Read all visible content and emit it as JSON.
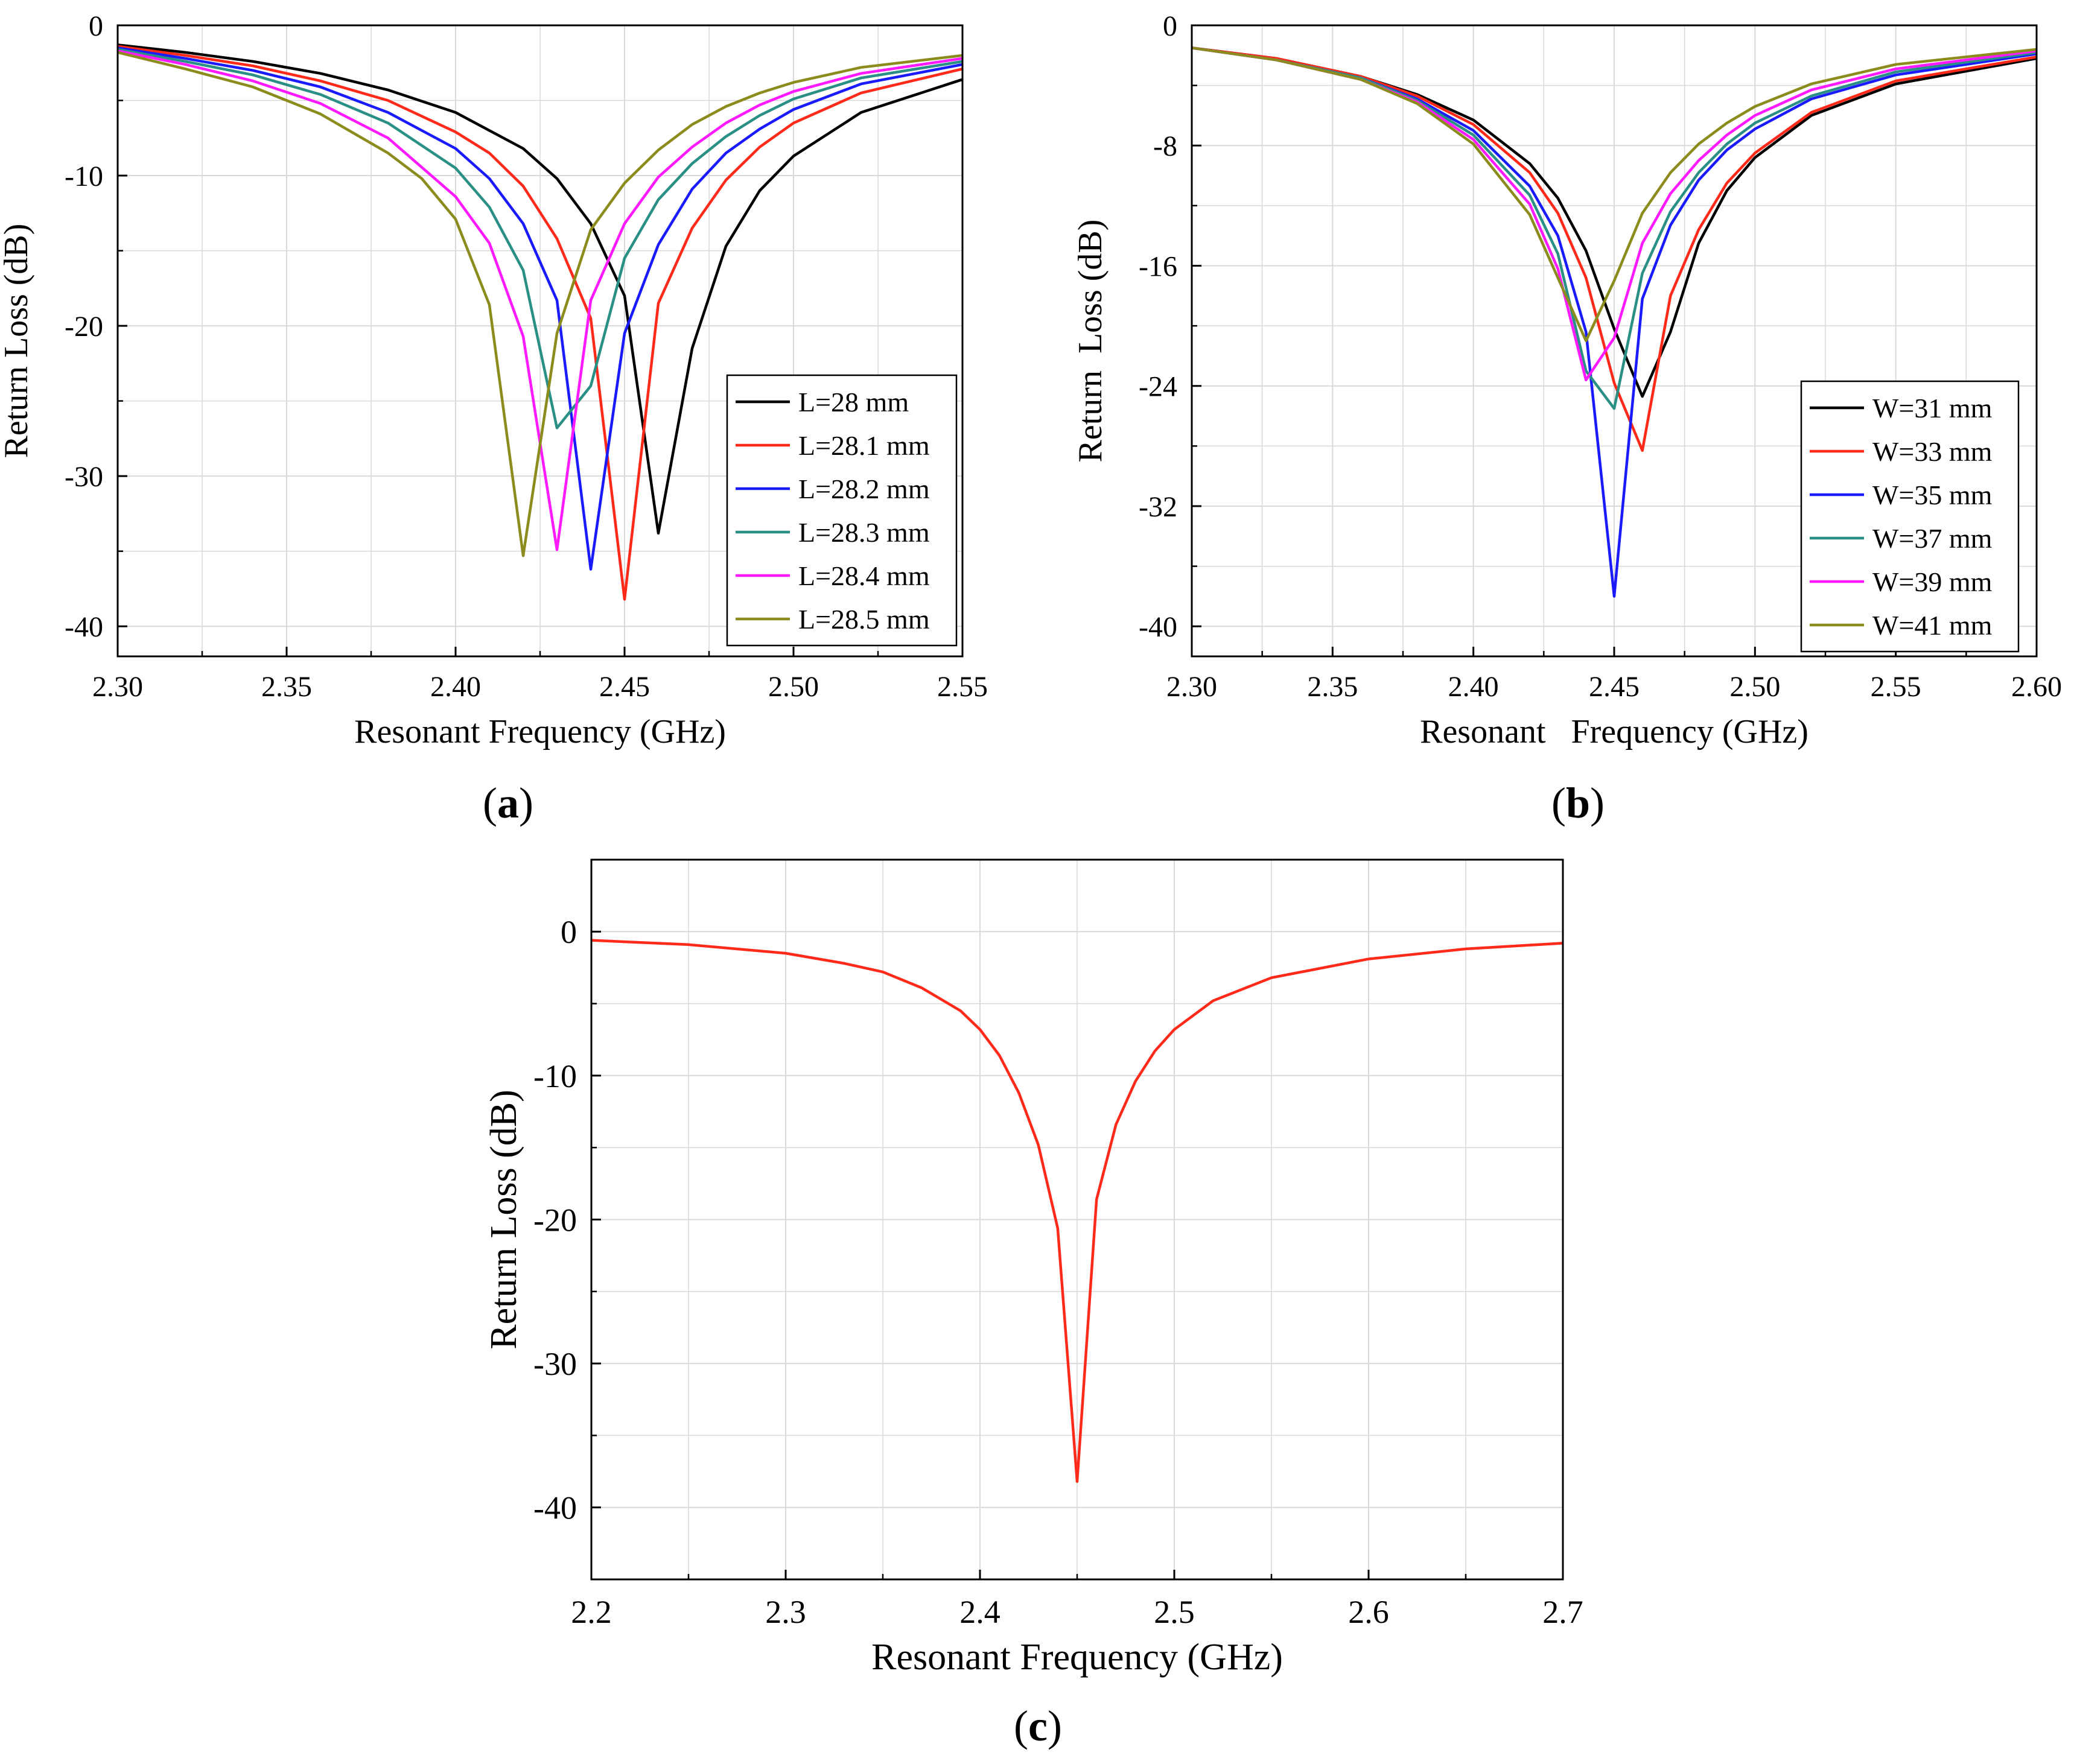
{
  "colors": {
    "black": "#000000",
    "red": "#ff2a1a",
    "blue": "#1a1aff",
    "teal": "#2a8f84",
    "magenta": "#ff1aff",
    "olive": "#8c8c1e",
    "grid": "#d9d9d9"
  },
  "chart_data": [
    {
      "type": "line",
      "panel_label": "a",
      "title": "",
      "xlabel": "Resonant Frequency (GHz)",
      "ylabel": "Return Loss (dB)",
      "xlim": [
        2.3,
        2.55
      ],
      "ylim": [
        -42,
        0
      ],
      "xticks": [
        2.3,
        2.35,
        2.4,
        2.45,
        2.5,
        2.55
      ],
      "xtick_labels": [
        "2.30",
        "2.35",
        "2.40",
        "2.45",
        "2.50",
        "2.55"
      ],
      "yticks": [
        0,
        -10,
        -20,
        -30,
        -40
      ],
      "ytick_labels": [
        "0",
        "-10",
        "-20",
        "-30",
        "-40"
      ],
      "grid": true,
      "legend_position": "lower-right",
      "series": [
        {
          "name": "L=28 mm",
          "color": "#000000",
          "x": [
            2.3,
            2.32,
            2.34,
            2.36,
            2.38,
            2.4,
            2.42,
            2.43,
            2.44,
            2.45,
            2.46,
            2.47,
            2.48,
            2.49,
            2.5,
            2.52,
            2.55
          ],
          "y": [
            -1.3,
            -1.8,
            -2.4,
            -3.2,
            -4.3,
            -5.8,
            -8.2,
            -10.2,
            -13.2,
            -18.0,
            -33.8,
            -21.5,
            -14.7,
            -11.0,
            -8.7,
            -5.8,
            -3.6
          ]
        },
        {
          "name": "L=28.1 mm",
          "color": "#ff2a1a",
          "x": [
            2.3,
            2.32,
            2.34,
            2.36,
            2.38,
            2.4,
            2.41,
            2.42,
            2.43,
            2.44,
            2.45,
            2.46,
            2.47,
            2.48,
            2.49,
            2.5,
            2.52,
            2.55
          ],
          "y": [
            -1.4,
            -2.0,
            -2.7,
            -3.7,
            -5.0,
            -7.1,
            -8.5,
            -10.7,
            -14.2,
            -19.5,
            -38.2,
            -18.5,
            -13.5,
            -10.3,
            -8.1,
            -6.5,
            -4.5,
            -2.9
          ]
        },
        {
          "name": "L=28.2 mm",
          "color": "#1a1aff",
          "x": [
            2.3,
            2.32,
            2.34,
            2.36,
            2.38,
            2.4,
            2.41,
            2.42,
            2.43,
            2.44,
            2.45,
            2.46,
            2.47,
            2.48,
            2.49,
            2.5,
            2.52,
            2.55
          ],
          "y": [
            -1.5,
            -2.2,
            -3.0,
            -4.1,
            -5.8,
            -8.2,
            -10.2,
            -13.2,
            -18.3,
            -36.2,
            -20.5,
            -14.6,
            -10.9,
            -8.5,
            -6.9,
            -5.6,
            -3.9,
            -2.6
          ]
        },
        {
          "name": "L=28.3 mm",
          "color": "#2a8f84",
          "x": [
            2.3,
            2.32,
            2.34,
            2.36,
            2.38,
            2.4,
            2.41,
            2.42,
            2.43,
            2.44,
            2.45,
            2.46,
            2.47,
            2.48,
            2.49,
            2.5,
            2.52,
            2.55
          ],
          "y": [
            -1.6,
            -2.4,
            -3.3,
            -4.6,
            -6.5,
            -9.5,
            -12.1,
            -16.3,
            -26.8,
            -24.0,
            -15.5,
            -11.6,
            -9.2,
            -7.4,
            -6.0,
            -4.9,
            -3.5,
            -2.4
          ]
        },
        {
          "name": "L=28.4 mm",
          "color": "#ff1aff",
          "x": [
            2.3,
            2.32,
            2.34,
            2.36,
            2.38,
            2.4,
            2.41,
            2.42,
            2.43,
            2.44,
            2.45,
            2.46,
            2.47,
            2.48,
            2.49,
            2.5,
            2.52,
            2.55
          ],
          "y": [
            -1.7,
            -2.6,
            -3.7,
            -5.2,
            -7.5,
            -11.4,
            -14.5,
            -20.7,
            -34.9,
            -18.3,
            -13.2,
            -10.1,
            -8.1,
            -6.5,
            -5.3,
            -4.4,
            -3.2,
            -2.2
          ]
        },
        {
          "name": "L=28.5 mm",
          "color": "#8c8c1e",
          "x": [
            2.3,
            2.32,
            2.34,
            2.36,
            2.38,
            2.39,
            2.4,
            2.41,
            2.42,
            2.43,
            2.44,
            2.45,
            2.46,
            2.47,
            2.48,
            2.49,
            2.5,
            2.52,
            2.55
          ],
          "y": [
            -1.8,
            -2.9,
            -4.1,
            -5.9,
            -8.5,
            -10.2,
            -12.9,
            -18.6,
            -35.3,
            -20.5,
            -13.6,
            -10.5,
            -8.3,
            -6.6,
            -5.4,
            -4.5,
            -3.8,
            -2.8,
            -2.0
          ]
        }
      ]
    },
    {
      "type": "line",
      "panel_label": "b",
      "title": "",
      "xlabel": "Resonant   Frequency (GHz)",
      "ylabel": "Return  Loss (dB)",
      "xlim": [
        2.3,
        2.6
      ],
      "ylim": [
        -42,
        0
      ],
      "xticks": [
        2.3,
        2.35,
        2.4,
        2.45,
        2.5,
        2.55,
        2.6
      ],
      "xtick_labels": [
        "2.30",
        "2.35",
        "2.40",
        "2.45",
        "2.50",
        "2.55",
        "2.60"
      ],
      "yticks": [
        0,
        -8,
        -16,
        -24,
        -32,
        -40
      ],
      "ytick_labels": [
        "0",
        "-8",
        "-16",
        "-24",
        "-32",
        "-40"
      ],
      "grid": true,
      "legend_position": "lower-right",
      "series": [
        {
          "name": "W=31 mm",
          "color": "#000000",
          "x": [
            2.3,
            2.33,
            2.36,
            2.38,
            2.4,
            2.42,
            2.43,
            2.44,
            2.45,
            2.46,
            2.47,
            2.48,
            2.49,
            2.5,
            2.52,
            2.55,
            2.6
          ],
          "y": [
            -1.5,
            -2.2,
            -3.4,
            -4.6,
            -6.3,
            -9.2,
            -11.5,
            -15.0,
            -20.2,
            -24.7,
            -20.4,
            -14.5,
            -11.0,
            -8.8,
            -6.0,
            -3.9,
            -2.2
          ]
        },
        {
          "name": "W=33 mm",
          "color": "#ff2a1a",
          "x": [
            2.3,
            2.33,
            2.36,
            2.38,
            2.4,
            2.42,
            2.43,
            2.44,
            2.45,
            2.46,
            2.47,
            2.48,
            2.49,
            2.5,
            2.52,
            2.55,
            2.6
          ],
          "y": [
            -1.5,
            -2.2,
            -3.4,
            -4.7,
            -6.6,
            -9.8,
            -12.5,
            -16.8,
            -23.8,
            -28.3,
            -18.0,
            -13.6,
            -10.5,
            -8.5,
            -5.8,
            -3.7,
            -2.1
          ]
        },
        {
          "name": "W=35 mm",
          "color": "#1a1aff",
          "x": [
            2.3,
            2.33,
            2.36,
            2.38,
            2.4,
            2.42,
            2.43,
            2.44,
            2.45,
            2.46,
            2.47,
            2.48,
            2.49,
            2.5,
            2.52,
            2.55,
            2.6
          ],
          "y": [
            -1.5,
            -2.3,
            -3.5,
            -4.9,
            -7.0,
            -10.7,
            -14.0,
            -20.4,
            -38.0,
            -18.2,
            -13.3,
            -10.3,
            -8.3,
            -6.9,
            -4.9,
            -3.3,
            -1.9
          ]
        },
        {
          "name": "W=37 mm",
          "color": "#2a8f84",
          "x": [
            2.3,
            2.33,
            2.36,
            2.38,
            2.4,
            2.42,
            2.43,
            2.44,
            2.45,
            2.46,
            2.47,
            2.48,
            2.49,
            2.5,
            2.52,
            2.55,
            2.6
          ],
          "y": [
            -1.5,
            -2.3,
            -3.5,
            -5.0,
            -7.3,
            -11.3,
            -15.2,
            -23.0,
            -25.5,
            -16.5,
            -12.4,
            -9.8,
            -7.9,
            -6.5,
            -4.7,
            -3.1,
            -1.8
          ]
        },
        {
          "name": "W=39 mm",
          "color": "#ff1aff",
          "x": [
            2.3,
            2.33,
            2.36,
            2.38,
            2.4,
            2.42,
            2.43,
            2.44,
            2.45,
            2.46,
            2.47,
            2.48,
            2.49,
            2.5,
            2.52,
            2.55,
            2.6
          ],
          "y": [
            -1.5,
            -2.3,
            -3.6,
            -5.1,
            -7.6,
            -11.9,
            -16.2,
            -23.6,
            -20.8,
            -14.5,
            -11.2,
            -9.0,
            -7.3,
            -6.0,
            -4.3,
            -2.9,
            -1.7
          ]
        },
        {
          "name": "W=41 mm",
          "color": "#8c8c1e",
          "x": [
            2.3,
            2.33,
            2.36,
            2.38,
            2.4,
            2.42,
            2.43,
            2.44,
            2.45,
            2.46,
            2.47,
            2.48,
            2.49,
            2.5,
            2.52,
            2.55,
            2.6
          ],
          "y": [
            -1.5,
            -2.3,
            -3.6,
            -5.2,
            -7.9,
            -12.6,
            -16.8,
            -21.0,
            -17.0,
            -12.5,
            -9.8,
            -7.9,
            -6.5,
            -5.4,
            -3.9,
            -2.6,
            -1.6
          ]
        }
      ]
    },
    {
      "type": "line",
      "panel_label": "c",
      "title": "",
      "xlabel": "Resonant Frequency (GHz)",
      "ylabel": "Return Loss (dB)",
      "xlim": [
        2.2,
        2.7
      ],
      "ylim": [
        -45,
        5
      ],
      "xticks": [
        2.2,
        2.3,
        2.4,
        2.5,
        2.6,
        2.7
      ],
      "xtick_labels": [
        "2.2",
        "2.3",
        "2.4",
        "2.5",
        "2.6",
        "2.7"
      ],
      "yticks": [
        0,
        -10,
        -20,
        -30,
        -40
      ],
      "ytick_labels": [
        "0",
        "-10",
        "-20",
        "-30",
        "-40"
      ],
      "grid": true,
      "legend_position": "none",
      "series": [
        {
          "name": "",
          "color": "#ff2a1a",
          "x": [
            2.2,
            2.25,
            2.3,
            2.33,
            2.35,
            2.37,
            2.39,
            2.4,
            2.41,
            2.42,
            2.43,
            2.44,
            2.45,
            2.46,
            2.47,
            2.48,
            2.49,
            2.5,
            2.52,
            2.55,
            2.6,
            2.65,
            2.7
          ],
          "y": [
            -0.6,
            -0.9,
            -1.5,
            -2.2,
            -2.8,
            -3.9,
            -5.5,
            -6.8,
            -8.6,
            -11.2,
            -14.8,
            -20.6,
            -38.2,
            -18.6,
            -13.4,
            -10.4,
            -8.3,
            -6.8,
            -4.8,
            -3.2,
            -1.9,
            -1.2,
            -0.8
          ]
        }
      ]
    }
  ]
}
